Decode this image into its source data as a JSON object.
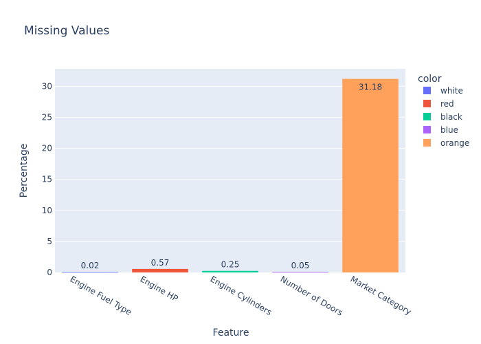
{
  "chart_data": {
    "type": "bar",
    "title": "Missing Values",
    "xlabel": "Feature",
    "ylabel": "Percentage",
    "ylim": [
      0,
      32.8
    ],
    "yticks": [
      0,
      5,
      10,
      15,
      20,
      25,
      30
    ],
    "categories": [
      "Engine Fuel Type",
      "Engine HP",
      "Engine Cylinders",
      "Number of Doors",
      "Market Category"
    ],
    "values": [
      0.02,
      0.57,
      0.25,
      0.05,
      31.18
    ],
    "value_labels": [
      "0.02",
      "0.57",
      "0.25",
      "0.05",
      "31.18"
    ],
    "legend": {
      "title": "color",
      "placement": "right",
      "entries": [
        "white",
        "red",
        "black",
        "blue",
        "orange"
      ]
    },
    "colors": [
      "#636efa",
      "#EF553B",
      "#00cc96",
      "#ab63fa",
      "#FFA15A"
    ],
    "plot_background": "#E5ECF6",
    "grid": true
  }
}
